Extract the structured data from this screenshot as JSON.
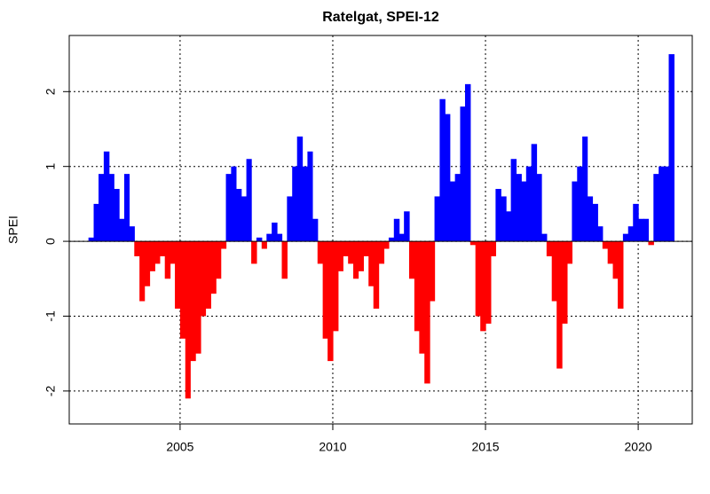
{
  "chart_data": {
    "type": "bar",
    "title": "Ratelgat, SPEI-12",
    "y_label": "SPEI",
    "x": [
      2002.0,
      2002.17,
      2002.33,
      2002.5,
      2002.67,
      2002.83,
      2003.0,
      2003.17,
      2003.33,
      2003.5,
      2003.67,
      2003.83,
      2004.0,
      2004.17,
      2004.33,
      2004.5,
      2004.67,
      2004.83,
      2005.0,
      2005.17,
      2005.33,
      2005.5,
      2005.67,
      2005.83,
      2006.0,
      2006.17,
      2006.33,
      2006.5,
      2006.67,
      2006.83,
      2007.0,
      2007.17,
      2007.33,
      2007.5,
      2007.67,
      2007.83,
      2008.0,
      2008.17,
      2008.33,
      2008.5,
      2008.67,
      2008.83,
      2009.0,
      2009.17,
      2009.33,
      2009.5,
      2009.67,
      2009.83,
      2010.0,
      2010.17,
      2010.33,
      2010.5,
      2010.67,
      2010.83,
      2011.0,
      2011.17,
      2011.33,
      2011.5,
      2011.67,
      2011.83,
      2012.0,
      2012.17,
      2012.33,
      2012.5,
      2012.67,
      2012.83,
      2013.0,
      2013.17,
      2013.33,
      2013.5,
      2013.67,
      2013.83,
      2014.0,
      2014.17,
      2014.33,
      2014.5,
      2014.67,
      2014.83,
      2015.0,
      2015.17,
      2015.33,
      2015.5,
      2015.67,
      2015.83,
      2016.0,
      2016.17,
      2016.33,
      2016.5,
      2016.67,
      2016.83,
      2017.0,
      2017.17,
      2017.33,
      2017.5,
      2017.67,
      2017.83,
      2018.0,
      2018.17,
      2018.33,
      2018.5,
      2018.67,
      2018.83,
      2019.0,
      2019.17,
      2019.33,
      2019.5,
      2019.67,
      2019.83,
      2020.0,
      2020.17,
      2020.33,
      2020.5,
      2020.67,
      2020.83,
      2021.0
    ],
    "values": [
      0.05,
      0.5,
      0.9,
      1.2,
      0.9,
      0.7,
      0.3,
      0.9,
      0.2,
      -0.2,
      -0.8,
      -0.6,
      -0.4,
      -0.3,
      -0.2,
      -0.5,
      -0.3,
      -0.9,
      -1.3,
      -2.1,
      -1.6,
      -1.5,
      -1.0,
      -0.9,
      -0.7,
      -0.5,
      -0.1,
      0.9,
      1.0,
      0.7,
      0.6,
      1.1,
      -0.3,
      0.05,
      -0.1,
      0.1,
      0.25,
      0.1,
      -0.5,
      0.6,
      1.0,
      1.4,
      1.0,
      1.2,
      0.3,
      -0.3,
      -1.3,
      -1.6,
      -1.2,
      -0.4,
      -0.2,
      -0.3,
      -0.5,
      -0.4,
      -0.2,
      -0.6,
      -0.9,
      -0.3,
      -0.1,
      0.05,
      0.3,
      0.1,
      0.4,
      -0.5,
      -1.2,
      -1.5,
      -1.9,
      -0.8,
      0.6,
      1.9,
      1.7,
      0.8,
      0.9,
      1.8,
      2.1,
      -0.05,
      -1.0,
      -1.2,
      -1.1,
      -0.2,
      0.7,
      0.6,
      0.4,
      1.1,
      0.9,
      0.8,
      1.0,
      1.3,
      0.9,
      0.1,
      -0.2,
      -0.8,
      -1.7,
      -1.1,
      -0.3,
      0.8,
      1.0,
      1.4,
      0.6,
      0.5,
      0.2,
      -0.1,
      -0.3,
      -0.5,
      -0.9,
      0.1,
      0.2,
      0.5,
      0.3,
      0.3,
      -0.05,
      0.9,
      1.0,
      1.0,
      2.5
    ],
    "positive_color": "#0000ff",
    "negative_color": "#ff0000",
    "xlim": [
      2001.37,
      2021.77
    ],
    "xticks": [
      2005,
      2010,
      2015,
      2020
    ],
    "ylim": [
      -2.44,
      2.75
    ],
    "yticks": [
      -2,
      -1,
      0,
      1,
      2
    ],
    "grid": true
  }
}
